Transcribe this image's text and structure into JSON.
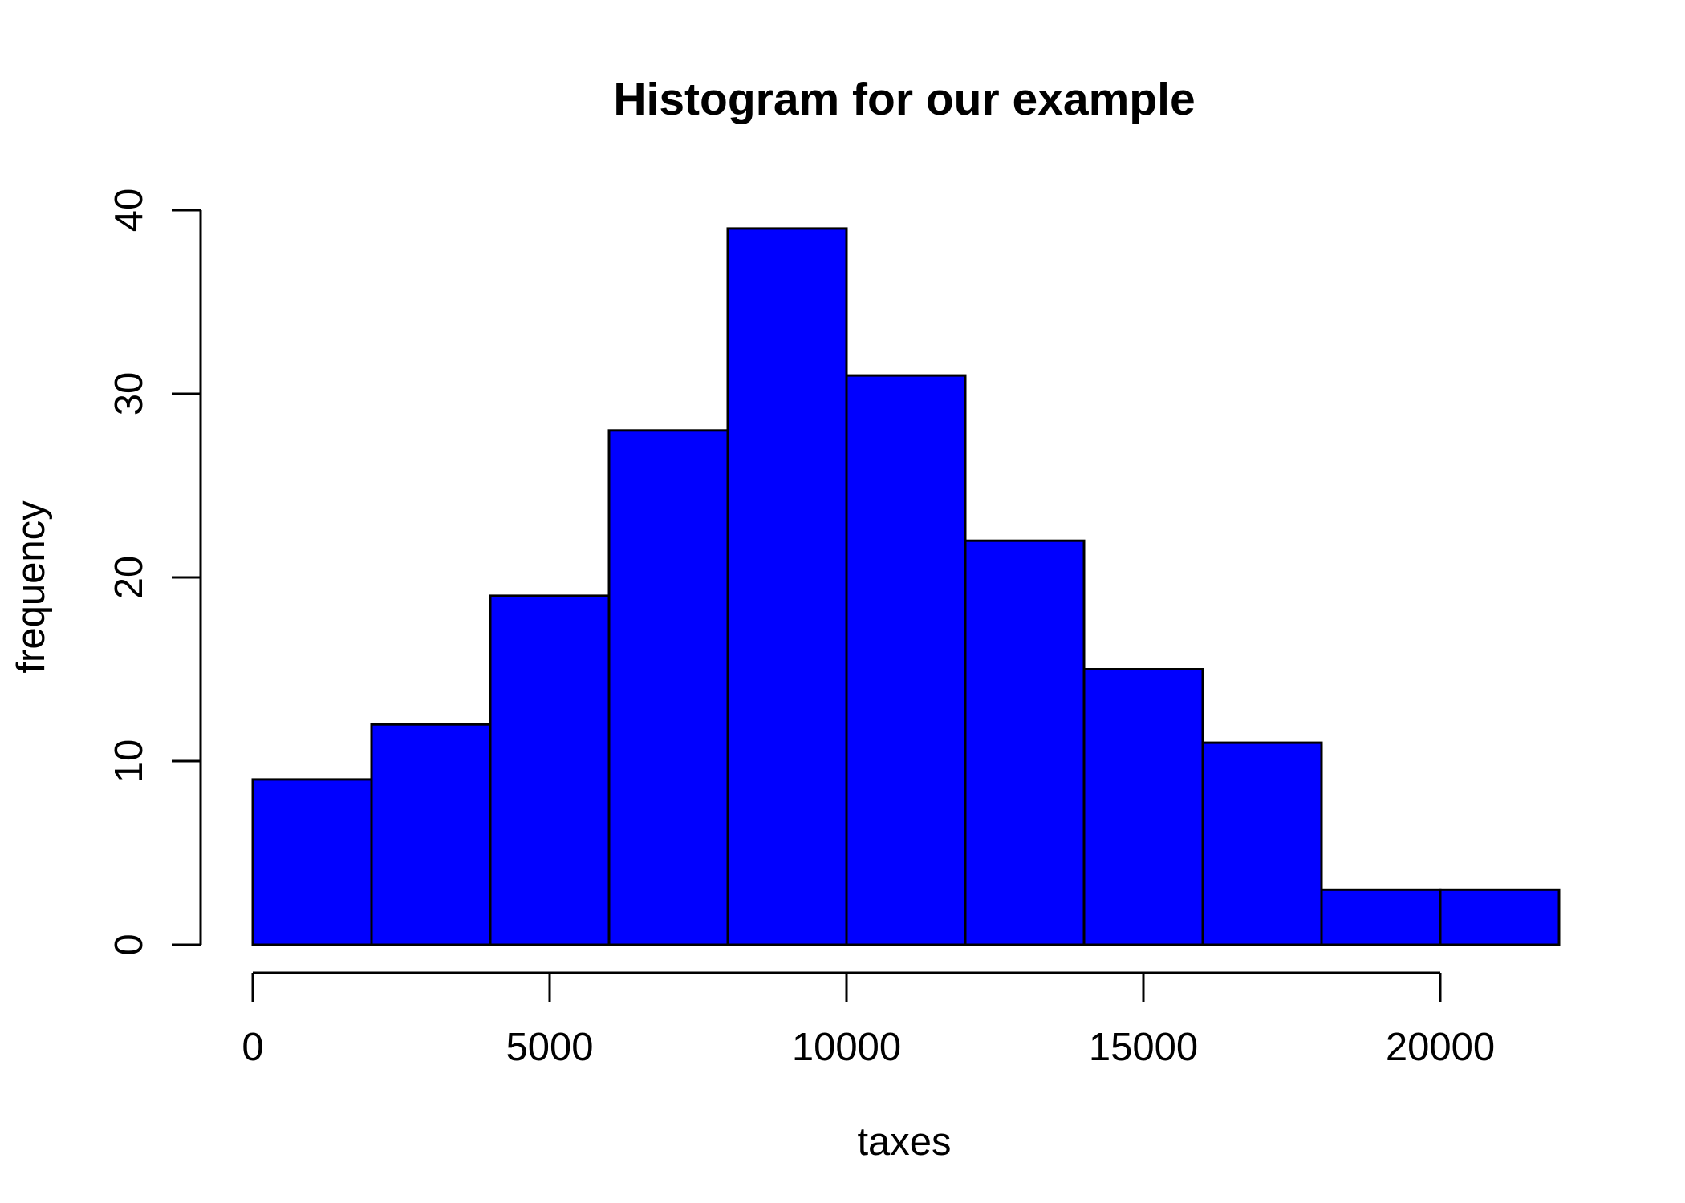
{
  "chart_data": {
    "type": "bar",
    "subtype": "histogram",
    "title": "Histogram for our example",
    "xlabel": "taxes",
    "ylabel": "frequency",
    "bin_edges": [
      0,
      2000,
      4000,
      6000,
      8000,
      10000,
      12000,
      14000,
      16000,
      18000,
      20000,
      22000
    ],
    "values": [
      9,
      12,
      19,
      28,
      39,
      31,
      22,
      15,
      11,
      3,
      3
    ],
    "xlim": [
      0,
      22000
    ],
    "ylim": [
      0,
      40
    ],
    "xticks": [
      0,
      5000,
      10000,
      15000,
      20000
    ],
    "xtick_labels": [
      "0",
      "5000",
      "10000",
      "15000",
      "20000"
    ],
    "yticks": [
      0,
      10,
      20,
      30,
      40
    ],
    "ytick_labels": [
      "0",
      "10",
      "20",
      "30",
      "40"
    ],
    "bar_color": "#0000FF",
    "edge_color": "#000000",
    "grid": false,
    "legend": false
  }
}
